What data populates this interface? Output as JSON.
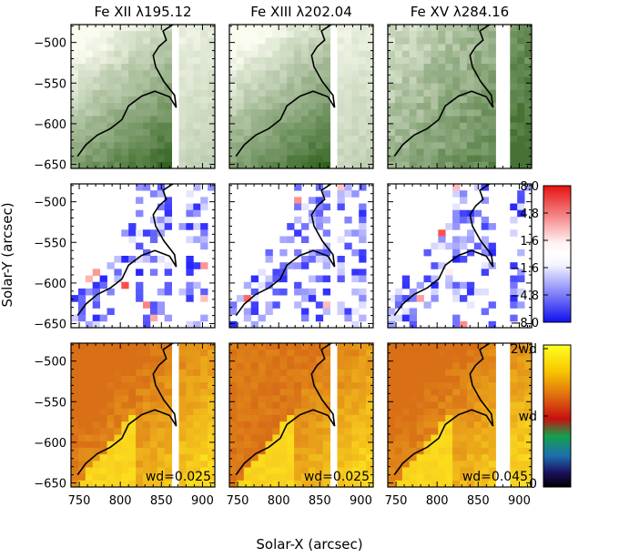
{
  "chart_data": {
    "type": "heatmap",
    "panel_titles": [
      "Fe XII λ195.12",
      "Fe XIII λ202.04",
      "Fe XV λ284.16"
    ],
    "xlabel": "Solar-X (arcsec)",
    "ylabel": "Solar-Y (arcsec)",
    "xlim": [
      740,
      915
    ],
    "ylim": [
      -655,
      -478
    ],
    "x_ticks": [
      "750",
      "800",
      "850",
      "900"
    ],
    "y_ticks": [
      "-500",
      "-550",
      "-600",
      "-650"
    ],
    "rows": [
      {
        "quantity": "intensity",
        "colormap": "white-green"
      },
      {
        "quantity": "velocity",
        "colormap": "blue-white-red",
        "colorbar_ticks": [
          "8.0",
          "4.8",
          "1.6",
          "-1.6",
          "-4.8",
          "-8.0"
        ],
        "colorbar_range": [
          -8.0,
          8.0
        ]
      },
      {
        "quantity": "line width",
        "colormap": "black-blue-green-red-yellow",
        "colorbar_ticks": [
          "2wd",
          "wd",
          "0"
        ]
      }
    ],
    "wd_labels": [
      "wd=0.025",
      "wd=0.025",
      "wd=0.045"
    ],
    "wd_values": [
      0.025,
      0.025,
      0.045
    ],
    "data_gap_x": [
      [
        860,
        875
      ],
      [
        860,
        875
      ],
      [
        875,
        890
      ]
    ],
    "contour_outline": [
      [
        748,
        -640
      ],
      [
        758,
        -626
      ],
      [
        772,
        -614
      ],
      [
        788,
        -606
      ],
      [
        802,
        -595
      ],
      [
        810,
        -578
      ],
      [
        826,
        -566
      ],
      [
        842,
        -560
      ],
      [
        860,
        -567
      ],
      [
        868,
        -580
      ],
      [
        866,
        -565
      ],
      [
        853,
        -548
      ],
      [
        843,
        -530
      ],
      [
        840,
        -516
      ],
      [
        847,
        -505
      ],
      [
        856,
        -497
      ],
      [
        852,
        -486
      ],
      [
        864,
        -478
      ]
    ]
  }
}
